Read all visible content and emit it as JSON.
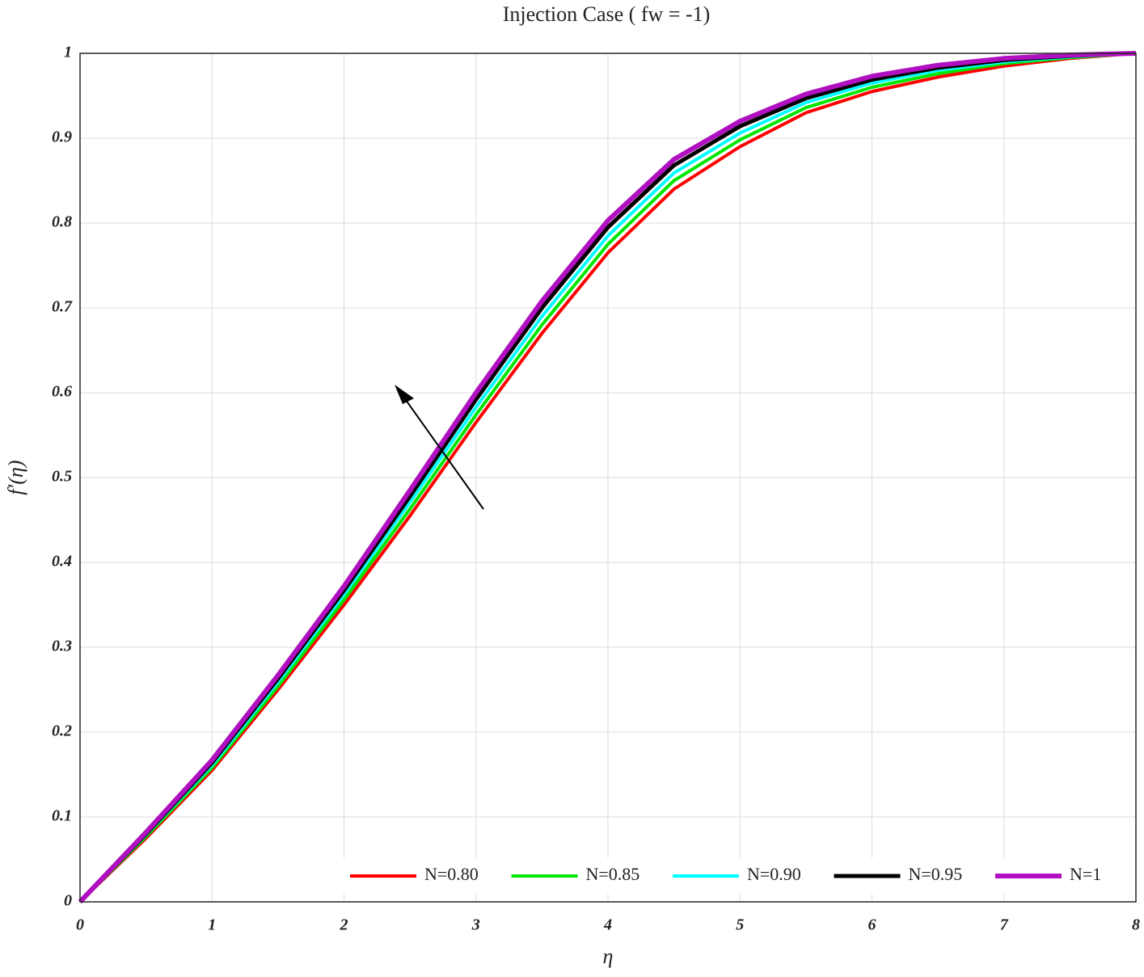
{
  "chart_data": {
    "type": "line",
    "title": "Injection Case ( fw = -1)",
    "x_label": "η",
    "y_label": "f′(η)",
    "x": [
      0,
      0.5,
      1,
      1.5,
      2,
      2.5,
      3,
      3.5,
      4,
      4.5,
      5,
      5.5,
      6,
      6.5,
      7,
      7.5,
      8
    ],
    "series": [
      {
        "name": "N=0.80",
        "color": "#ff0000",
        "values": [
          0,
          0.075,
          0.155,
          0.25,
          0.35,
          0.455,
          0.565,
          0.67,
          0.765,
          0.84,
          0.89,
          0.93,
          0.955,
          0.972,
          0.985,
          0.994,
          1
        ]
      },
      {
        "name": "N=0.85",
        "color": "#00e600",
        "values": [
          0,
          0.077,
          0.158,
          0.254,
          0.356,
          0.463,
          0.574,
          0.68,
          0.775,
          0.85,
          0.898,
          0.936,
          0.96,
          0.976,
          0.988,
          0.995,
          1
        ]
      },
      {
        "name": "N=0.90",
        "color": "#00ffff",
        "values": [
          0,
          0.079,
          0.161,
          0.259,
          0.362,
          0.471,
          0.583,
          0.69,
          0.785,
          0.859,
          0.906,
          0.942,
          0.965,
          0.98,
          0.99,
          0.996,
          1
        ]
      },
      {
        "name": "N=0.95",
        "color": "#000000",
        "values": [
          0,
          0.08,
          0.164,
          0.263,
          0.367,
          0.478,
          0.592,
          0.7,
          0.795,
          0.868,
          0.914,
          0.947,
          0.969,
          0.983,
          0.992,
          0.997,
          1
        ]
      },
      {
        "name": "N=1",
        "color": "#b010c0",
        "values": [
          0,
          0.082,
          0.167,
          0.267,
          0.372,
          0.485,
          0.6,
          0.708,
          0.803,
          0.875,
          0.92,
          0.952,
          0.973,
          0.986,
          0.994,
          0.998,
          1
        ]
      }
    ],
    "xlim": [
      0,
      8
    ],
    "xticks": [
      0,
      1,
      2,
      3,
      4,
      5,
      6,
      7,
      8
    ],
    "ylim": [
      0,
      1
    ],
    "yticks": [
      0,
      0.1,
      0.2,
      0.3,
      0.4,
      0.5,
      0.6,
      0.7,
      0.8,
      0.9,
      1
    ],
    "grid": true,
    "legend": "lower-right"
  }
}
